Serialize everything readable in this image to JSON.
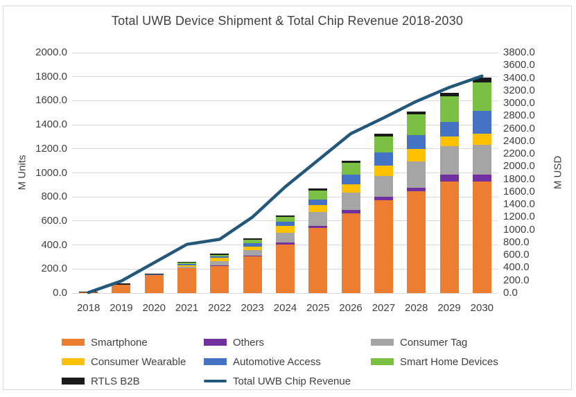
{
  "chart_data": {
    "type": "bar",
    "subtype": "stacked-bars-with-line",
    "title": "Total UWB Device Shipment & Total Chip Revenue 2018-2030",
    "categories": [
      "2018",
      "2019",
      "2020",
      "2021",
      "2022",
      "2023",
      "2024",
      "2025",
      "2026",
      "2027",
      "2028",
      "2029",
      "2030"
    ],
    "left_axis": {
      "label": "M Units",
      "min": 0,
      "max": 2000,
      "step": 200
    },
    "right_axis": {
      "label": "M USD",
      "min": 0,
      "max": 3800,
      "step": 200
    },
    "grid": "horizontal",
    "legend_position": "bottom",
    "colors": {
      "grid": "#D9D9D9",
      "text": "#404040",
      "frame_border": "#D9D9D9"
    },
    "series": [
      {
        "name": "Smartphone",
        "type": "bar",
        "color": "#ED7D31",
        "values": [
          5,
          72,
          150,
          205,
          225,
          305,
          405,
          540,
          665,
          775,
          845,
          930,
          930
        ]
      },
      {
        "name": "Others",
        "type": "bar",
        "color": "#7030A0",
        "values": [
          0,
          0,
          0,
          3,
          4,
          6,
          15,
          18,
          25,
          28,
          30,
          55,
          55
        ]
      },
      {
        "name": "Consumer Tag",
        "type": "bar",
        "color": "#A5A5A5",
        "values": [
          0,
          0,
          0,
          12,
          38,
          45,
          80,
          115,
          145,
          170,
          220,
          240,
          250
        ]
      },
      {
        "name": "Consumer Wearable",
        "type": "bar",
        "color": "#FFC000",
        "values": [
          0,
          0,
          0,
          12,
          25,
          33,
          58,
          58,
          72,
          85,
          105,
          80,
          90
        ]
      },
      {
        "name": "Automotive Access",
        "type": "bar",
        "color": "#4472C4",
        "values": [
          0,
          0,
          5,
          12,
          12,
          28,
          38,
          50,
          80,
          110,
          115,
          120,
          190
        ]
      },
      {
        "name": "Smart Home Devices",
        "type": "bar",
        "color": "#7AC143",
        "values": [
          0,
          0,
          0,
          8,
          15,
          25,
          40,
          75,
          95,
          135,
          170,
          210,
          240
        ]
      },
      {
        "name": "RTLS B2B",
        "type": "bar",
        "color": "#1A1A1A",
        "values": [
          8,
          8,
          5,
          8,
          9,
          12,
          10,
          15,
          18,
          22,
          28,
          30,
          40
        ]
      },
      {
        "name": "Total UWB Chip Revenue",
        "type": "line",
        "color": "#24587B",
        "axis": "right",
        "values": [
          10,
          190,
          480,
          770,
          850,
          1200,
          1680,
          2100,
          2520,
          2770,
          3030,
          3250,
          3430
        ]
      }
    ]
  }
}
